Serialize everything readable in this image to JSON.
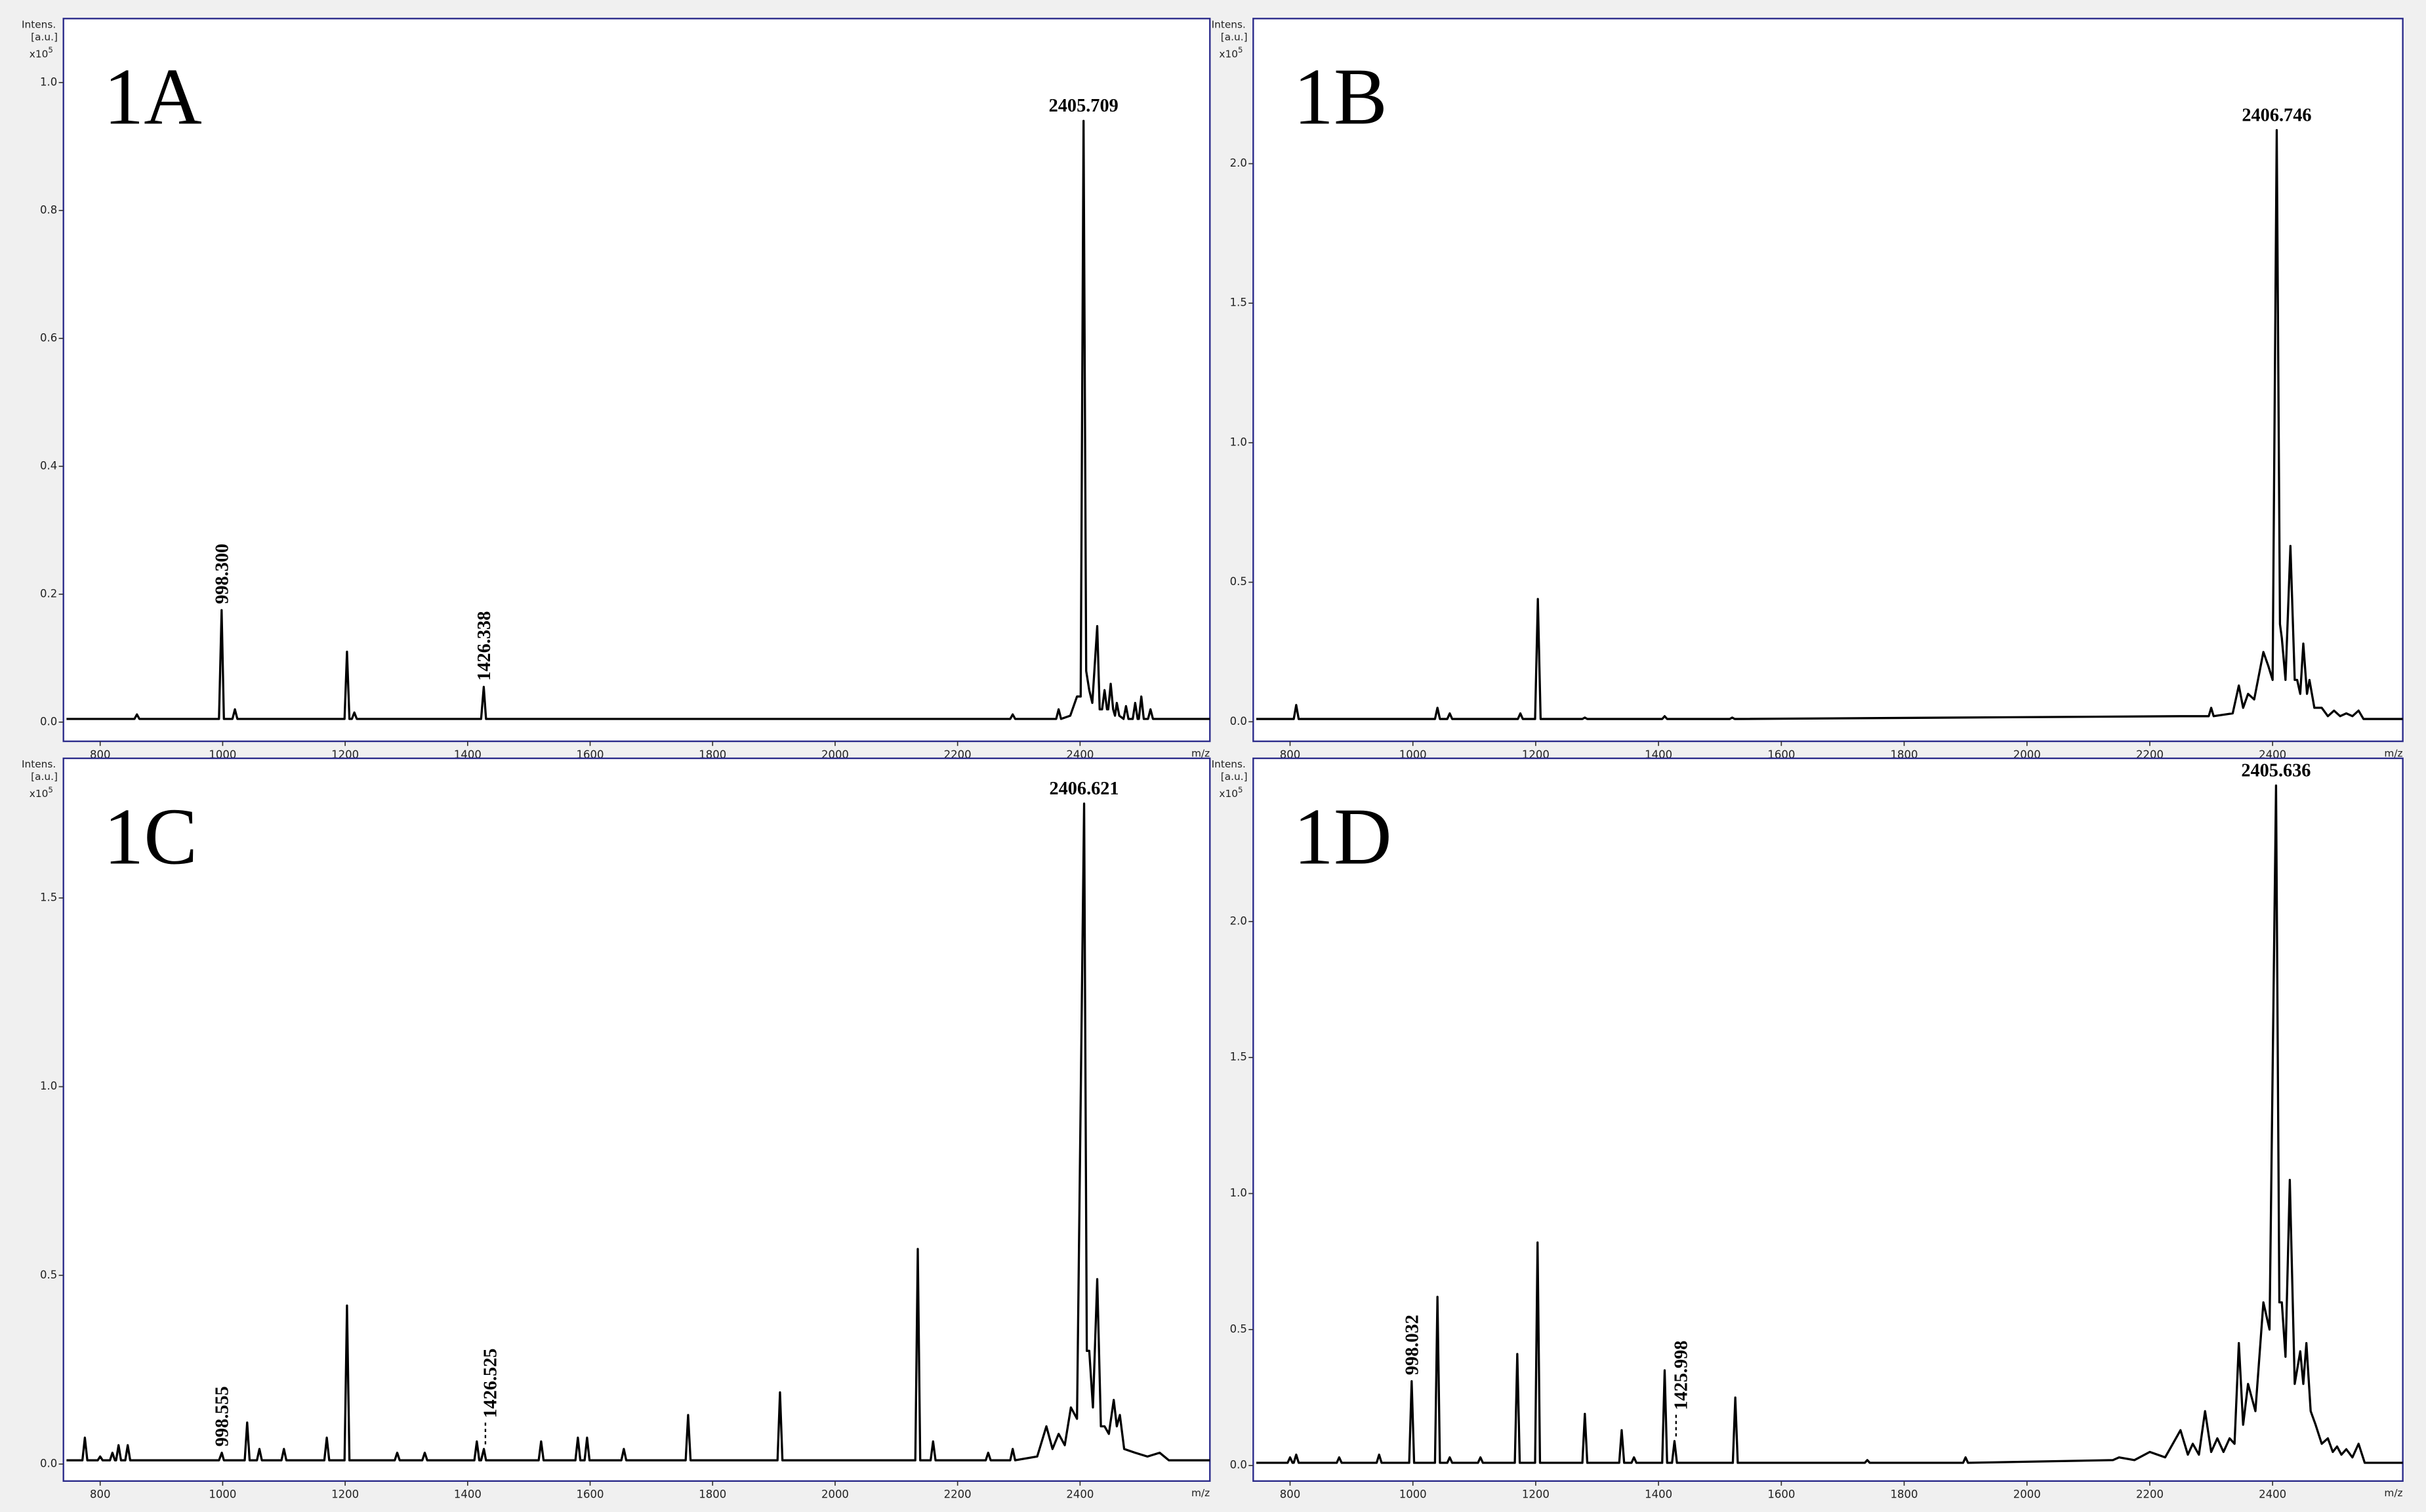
{
  "chart_data": [
    {
      "type": "line",
      "title": "1A",
      "y_label": [
        "Intens.",
        "[a.u.]"
      ],
      "y_multiplier": "x10",
      "y_exponent": "5",
      "x_label": "m/z",
      "color": "#000000",
      "xlim": [
        740,
        2612
      ],
      "xticks": [
        800,
        1000,
        1200,
        1400,
        1600,
        1800,
        2000,
        2200,
        2400
      ],
      "ylim": [
        -0.03,
        1.1
      ],
      "yticks": [
        {
          "value": 0,
          "label": "0.0"
        },
        0.2,
        0.4,
        0.6,
        0.8,
        {
          "value": 1,
          "label": "1.0"
        }
      ],
      "x": [
        745,
        856,
        860,
        864,
        994,
        998.3,
        1002,
        1016,
        1020,
        1024,
        1199,
        1203,
        1207,
        1211,
        1215,
        1219,
        1422,
        1426.3,
        1430,
        2286,
        2290,
        2294,
        2361,
        2365,
        2369,
        2384,
        2395,
        2401,
        2405.7,
        2410,
        2415,
        2420,
        2428,
        2432,
        2436,
        2440,
        2444,
        2446,
        2450,
        2454,
        2457,
        2460,
        2464,
        2471,
        2475,
        2479,
        2486,
        2490,
        2494,
        2496,
        2500,
        2504,
        2511,
        2515,
        2519,
        2612
      ],
      "values": [
        0.005,
        0.005,
        0.012,
        0.005,
        0.005,
        0.175,
        0.005,
        0.005,
        0.02,
        0.005,
        0.005,
        0.11,
        0.005,
        0.005,
        0.015,
        0.005,
        0.005,
        0.055,
        0.005,
        0.005,
        0.012,
        0.005,
        0.005,
        0.02,
        0.005,
        0.01,
        0.04,
        0.04,
        0.94,
        0.08,
        0.05,
        0.03,
        0.15,
        0.02,
        0.02,
        0.05,
        0.02,
        0.02,
        0.06,
        0.02,
        0.01,
        0.03,
        0.01,
        0.005,
        0.025,
        0.005,
        0.005,
        0.03,
        0.005,
        0.005,
        0.04,
        0.005,
        0.005,
        0.02,
        0.005,
        0.005
      ],
      "annotations": [
        {
          "label": "2405.709",
          "x": 2405.7,
          "y": 0.94,
          "rotated": false
        },
        {
          "label": "998.300",
          "x": 998.3,
          "y": 0.175,
          "rotated": true
        },
        {
          "label": "1426.338",
          "x": 1426.3,
          "y": 0.055,
          "rotated": true
        }
      ]
    },
    {
      "type": "line",
      "title": "1B",
      "y_label": [
        "Intens.",
        "[a.u.]"
      ],
      "y_multiplier": "x10",
      "y_exponent": "5",
      "x_label": "m/z",
      "color": "#000000",
      "xlim": [
        740,
        2612
      ],
      "xticks": [
        800,
        1000,
        1200,
        1400,
        1600,
        1800,
        2000,
        2200,
        2400
      ],
      "ylim": [
        -0.07,
        2.52
      ],
      "yticks": [
        {
          "value": 0,
          "label": "0.0"
        },
        0.5,
        {
          "value": 1,
          "label": "1.0"
        },
        1.5,
        {
          "value": 2,
          "label": "2.0"
        }
      ],
      "x": [
        745,
        806,
        810,
        814,
        1036,
        1040,
        1044,
        1056,
        1060,
        1064,
        1171,
        1175,
        1179,
        1199,
        1203.5,
        1208,
        1276,
        1280,
        1284,
        1406,
        1410,
        1414,
        1516,
        1520,
        1524,
        2250,
        2296,
        2300,
        2304,
        2335,
        2345,
        2352,
        2360,
        2370,
        2385,
        2393,
        2400,
        2406.7,
        2412,
        2415,
        2421,
        2429,
        2436,
        2440,
        2445,
        2450,
        2456,
        2460,
        2468,
        2480,
        2490,
        2500,
        2510,
        2520,
        2530,
        2540,
        2548,
        2612
      ],
      "values": [
        0.01,
        0.01,
        0.06,
        0.01,
        0.01,
        0.05,
        0.01,
        0.01,
        0.03,
        0.01,
        0.01,
        0.03,
        0.01,
        0.01,
        0.44,
        0.01,
        0.01,
        0.015,
        0.01,
        0.01,
        0.02,
        0.01,
        0.01,
        0.015,
        0.01,
        0.02,
        0.02,
        0.05,
        0.02,
        0.03,
        0.13,
        0.05,
        0.1,
        0.08,
        0.25,
        0.2,
        0.15,
        2.12,
        0.35,
        0.3,
        0.15,
        0.63,
        0.15,
        0.15,
        0.1,
        0.28,
        0.1,
        0.15,
        0.05,
        0.05,
        0.02,
        0.04,
        0.02,
        0.03,
        0.02,
        0.04,
        0.01,
        0.01
      ],
      "annotations": [
        {
          "label": "2406.746",
          "x": 2406.7,
          "y": 2.12,
          "rotated": false
        }
      ]
    },
    {
      "type": "line",
      "title": "1C",
      "y_label": [
        "Intens.",
        "[a.u.]"
      ],
      "y_multiplier": "x10",
      "y_exponent": "5",
      "x_label": "m/z",
      "color": "#000000",
      "xlim": [
        740,
        2612
      ],
      "xticks": [
        800,
        1000,
        1200,
        1400,
        1600,
        1800,
        2000,
        2200,
        2400
      ],
      "ylim": [
        -0.045,
        1.87
      ],
      "yticks": [
        {
          "value": 0,
          "label": "0.0"
        },
        0.5,
        {
          "value": 1,
          "label": "1.0"
        },
        1.5
      ],
      "x": [
        745,
        771,
        775,
        779,
        796,
        800,
        804,
        816,
        820,
        824,
        826,
        830,
        834,
        841,
        845,
        849,
        994,
        998.6,
        1002,
        1036,
        1040,
        1044,
        1056,
        1060,
        1064,
        1096,
        1100,
        1104,
        1166,
        1170,
        1174,
        1199,
        1203,
        1207,
        1281,
        1285,
        1289,
        1326,
        1330,
        1334,
        1411,
        1415,
        1419,
        1422,
        1426.5,
        1430,
        1516,
        1520,
        1524,
        1576,
        1580,
        1584,
        1591,
        1595,
        1599,
        1651,
        1655,
        1659,
        1756,
        1760,
        1764,
        1906,
        1910,
        1914,
        2131,
        2135,
        2139,
        2156,
        2160,
        2164,
        2246,
        2250,
        2254,
        2286,
        2290,
        2294,
        2330,
        2345,
        2355,
        2365,
        2375,
        2385,
        2395,
        2406.6,
        2411,
        2415,
        2421,
        2428,
        2434,
        2440,
        2447,
        2455,
        2460,
        2465,
        2472,
        2490,
        2510,
        2530,
        2545,
        2612
      ],
      "values": [
        0.01,
        0.01,
        0.07,
        0.01,
        0.01,
        0.02,
        0.01,
        0.01,
        0.03,
        0.01,
        0.01,
        0.05,
        0.01,
        0.01,
        0.05,
        0.01,
        0.01,
        0.03,
        0.01,
        0.01,
        0.11,
        0.01,
        0.01,
        0.04,
        0.01,
        0.01,
        0.04,
        0.01,
        0.01,
        0.07,
        0.01,
        0.01,
        0.42,
        0.01,
        0.01,
        0.03,
        0.01,
        0.01,
        0.03,
        0.01,
        0.01,
        0.06,
        0.01,
        0.01,
        0.04,
        0.01,
        0.01,
        0.06,
        0.01,
        0.01,
        0.07,
        0.01,
        0.01,
        0.07,
        0.01,
        0.01,
        0.04,
        0.01,
        0.01,
        0.13,
        0.01,
        0.01,
        0.19,
        0.01,
        0.01,
        0.57,
        0.01,
        0.01,
        0.06,
        0.01,
        0.01,
        0.03,
        0.01,
        0.01,
        0.04,
        0.01,
        0.02,
        0.1,
        0.04,
        0.08,
        0.05,
        0.15,
        0.12,
        1.75,
        0.3,
        0.3,
        0.15,
        0.49,
        0.1,
        0.1,
        0.08,
        0.17,
        0.1,
        0.13,
        0.04,
        0.03,
        0.02,
        0.03,
        0.01,
        0.01
      ],
      "annotations": [
        {
          "label": "2406.621",
          "x": 2406.6,
          "y": 1.75,
          "rotated": false
        },
        {
          "label": "998.555",
          "x": 998.6,
          "y": 0.03,
          "rotated": true
        },
        {
          "label": "1426.525",
          "x": 1426.5,
          "y": 0.04,
          "rotated": true,
          "dashed": true
        }
      ]
    },
    {
      "type": "line",
      "title": "1D",
      "y_label": [
        "Intens.",
        "[a.u.]"
      ],
      "y_multiplier": "x10",
      "y_exponent": "5",
      "x_label": "m/z",
      "color": "#000000",
      "xlim": [
        740,
        2612
      ],
      "xticks": [
        800,
        1000,
        1200,
        1400,
        1600,
        1800,
        2000,
        2200,
        2400
      ],
      "ylim": [
        -0.057,
        2.6
      ],
      "yticks": [
        {
          "value": 0,
          "label": "0.0"
        },
        0.5,
        {
          "value": 1,
          "label": "1.0"
        },
        1.5,
        {
          "value": 2,
          "label": "2.0"
        }
      ],
      "x": [
        745,
        796,
        800,
        804,
        806,
        810,
        814,
        876,
        880,
        884,
        941,
        945,
        949,
        994,
        998,
        1002,
        1036,
        1040,
        1044,
        1056,
        1060,
        1064,
        1106,
        1110,
        1114,
        1166,
        1170,
        1174,
        1199,
        1203,
        1207,
        1276,
        1280,
        1284,
        1336,
        1340,
        1344,
        1356,
        1360,
        1364,
        1406,
        1410,
        1414,
        1422,
        1426,
        1430,
        1521,
        1525,
        1529,
        1736,
        1740,
        1744,
        1896,
        1900,
        1904,
        2140,
        2150,
        2175,
        2200,
        2225,
        2250,
        2262,
        2270,
        2280,
        2290,
        2300,
        2310,
        2320,
        2330,
        2338,
        2345,
        2352,
        2360,
        2372,
        2385,
        2395,
        2405.6,
        2411,
        2415,
        2421,
        2428,
        2436,
        2445,
        2450,
        2455,
        2462,
        2470,
        2480,
        2490,
        2498,
        2505,
        2512,
        2520,
        2530,
        2540,
        2550,
        2612
      ],
      "values": [
        0.01,
        0.01,
        0.03,
        0.01,
        0.01,
        0.04,
        0.01,
        0.01,
        0.03,
        0.01,
        0.01,
        0.04,
        0.01,
        0.01,
        0.31,
        0.01,
        0.01,
        0.62,
        0.01,
        0.01,
        0.03,
        0.01,
        0.01,
        0.03,
        0.01,
        0.01,
        0.41,
        0.01,
        0.01,
        0.82,
        0.01,
        0.01,
        0.19,
        0.01,
        0.01,
        0.13,
        0.01,
        0.01,
        0.03,
        0.01,
        0.01,
        0.35,
        0.01,
        0.01,
        0.09,
        0.01,
        0.01,
        0.25,
        0.01,
        0.01,
        0.02,
        0.01,
        0.01,
        0.03,
        0.01,
        0.02,
        0.03,
        0.02,
        0.05,
        0.03,
        0.13,
        0.04,
        0.08,
        0.04,
        0.2,
        0.05,
        0.1,
        0.05,
        0.1,
        0.08,
        0.45,
        0.15,
        0.3,
        0.2,
        0.6,
        0.5,
        2.5,
        0.6,
        0.6,
        0.4,
        1.05,
        0.3,
        0.42,
        0.3,
        0.45,
        0.2,
        0.15,
        0.08,
        0.1,
        0.05,
        0.07,
        0.04,
        0.06,
        0.03,
        0.08,
        0.01,
        0.01
      ],
      "annotations": [
        {
          "label": "2405.636",
          "x": 2405.6,
          "y": 2.5,
          "rotated": false
        },
        {
          "label": "998.032",
          "x": 998,
          "y": 0.31,
          "rotated": true
        },
        {
          "label": "1425.998",
          "x": 1426,
          "y": 0.09,
          "rotated": true,
          "dashed": true
        }
      ]
    }
  ]
}
